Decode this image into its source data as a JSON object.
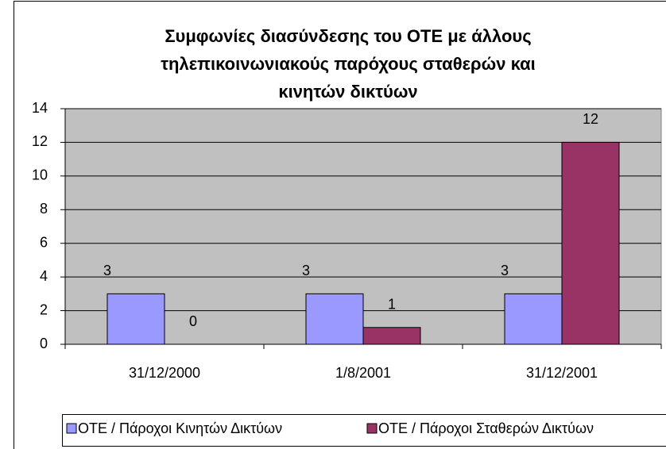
{
  "chart_data": {
    "type": "bar",
    "title": [
      "Συμφωνίες διασύνδεσης του ΟΤΕ με άλλους",
      "τηλεπικοινωνιακούς παρόχους σταθερών και",
      "κινητών δικτύων"
    ],
    "categories": [
      "31/12/2000",
      "1/8/2001",
      "31/12/2001"
    ],
    "series": [
      {
        "name": "ΟΤΕ / Πάροχοι Κινητών Δικτύων",
        "color": "#9999ff",
        "values": [
          3,
          3,
          3
        ]
      },
      {
        "name": "ΟΤΕ / Πάροχοι Σταθερών Δικτύων",
        "color": "#993366",
        "values": [
          0,
          1,
          12
        ]
      }
    ],
    "ylim": [
      0,
      14
    ],
    "yticks": [
      0,
      2,
      4,
      6,
      8,
      10,
      12,
      14
    ],
    "grid": true,
    "legend": "bottom"
  }
}
